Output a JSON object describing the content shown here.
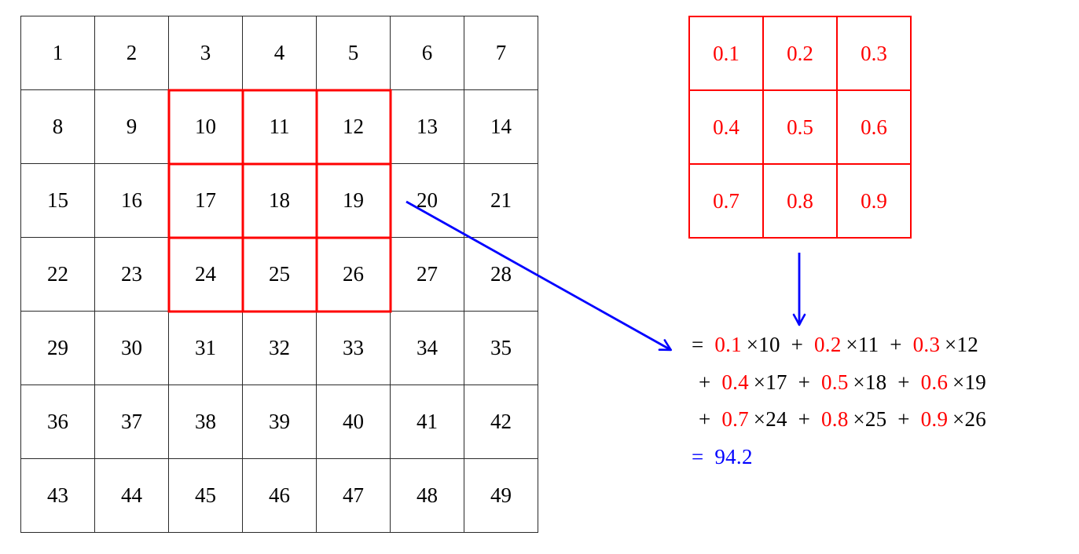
{
  "figure": {
    "description_colors": {
      "grid_line": "#2a2a2a",
      "text_black": "#000000",
      "highlight_red": "#ff0000",
      "arrow_blue": "#0000ff"
    }
  },
  "input_grid": {
    "rows": 7,
    "cols": 7,
    "values": [
      [
        1,
        2,
        3,
        4,
        5,
        6,
        7
      ],
      [
        8,
        9,
        10,
        11,
        12,
        13,
        14
      ],
      [
        15,
        16,
        17,
        18,
        19,
        20,
        21
      ],
      [
        22,
        23,
        24,
        25,
        26,
        27,
        28
      ],
      [
        29,
        30,
        31,
        32,
        33,
        34,
        35
      ],
      [
        36,
        37,
        38,
        39,
        40,
        41,
        42
      ],
      [
        43,
        44,
        45,
        46,
        47,
        48,
        49
      ]
    ],
    "text_color": "#000000"
  },
  "selection": {
    "highlighted_cells": [
      10,
      11,
      12,
      17,
      18,
      19,
      24,
      25,
      26
    ],
    "row_start": 2,
    "col_start": 3,
    "size": 3,
    "color": "#ff0000"
  },
  "kernel_grid": {
    "rows": 3,
    "cols": 3,
    "values": [
      [
        "0.1",
        "0.2",
        "0.3"
      ],
      [
        "0.4",
        "0.5",
        "0.6"
      ],
      [
        "0.7",
        "0.8",
        "0.9"
      ]
    ],
    "color": "#ff0000"
  },
  "arrows": {
    "color": "#0000ff"
  },
  "equation": {
    "result": "94.2",
    "lines": [
      {
        "indent": false,
        "segments": [
          {
            "text": "= ",
            "color": "#000000"
          },
          {
            "text": "0.1",
            "color": "#ff0000"
          },
          {
            "text": " ×10",
            "color": "#000000"
          },
          {
            "text": " + ",
            "color": "#000000"
          },
          {
            "text": "0.2",
            "color": "#ff0000"
          },
          {
            "text": " ×11",
            "color": "#000000"
          },
          {
            "text": " + ",
            "color": "#000000"
          },
          {
            "text": "0.3",
            "color": "#ff0000"
          },
          {
            "text": " ×12",
            "color": "#000000"
          }
        ]
      },
      {
        "indent": true,
        "segments": [
          {
            "text": "+ ",
            "color": "#000000"
          },
          {
            "text": "0.4",
            "color": "#ff0000"
          },
          {
            "text": " ×17",
            "color": "#000000"
          },
          {
            "text": " + ",
            "color": "#000000"
          },
          {
            "text": "0.5",
            "color": "#ff0000"
          },
          {
            "text": " ×18",
            "color": "#000000"
          },
          {
            "text": " + ",
            "color": "#000000"
          },
          {
            "text": "0.6",
            "color": "#ff0000"
          },
          {
            "text": " ×19",
            "color": "#000000"
          }
        ]
      },
      {
        "indent": true,
        "segments": [
          {
            "text": "+ ",
            "color": "#000000"
          },
          {
            "text": "0.7",
            "color": "#ff0000"
          },
          {
            "text": " ×24",
            "color": "#000000"
          },
          {
            "text": " + ",
            "color": "#000000"
          },
          {
            "text": "0.8",
            "color": "#ff0000"
          },
          {
            "text": " ×25",
            "color": "#000000"
          },
          {
            "text": " + ",
            "color": "#000000"
          },
          {
            "text": "0.9",
            "color": "#ff0000"
          },
          {
            "text": " ×26",
            "color": "#000000"
          }
        ]
      },
      {
        "indent": false,
        "segments": [
          {
            "text": "= ",
            "color": "#0000ff"
          },
          {
            "text": "94.2",
            "color": "#0000ff"
          }
        ]
      }
    ]
  }
}
